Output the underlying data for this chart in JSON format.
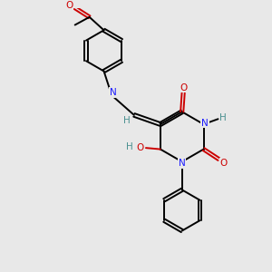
{
  "background_color": "#e8e8e8",
  "atom_colors": {
    "C": "#000000",
    "N": "#1a1aff",
    "O": "#cc0000",
    "H": "#4a9090"
  },
  "bond_color": "#000000",
  "bond_width": 1.4,
  "fig_width": 3.0,
  "fig_height": 3.0,
  "dpi": 100
}
